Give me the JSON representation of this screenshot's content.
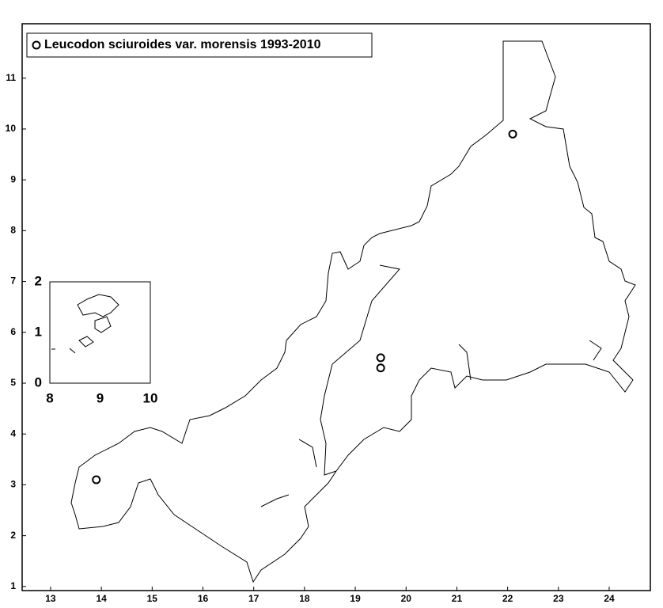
{
  "chart_data": [
    {
      "type": "scatter",
      "series": [
        {
          "name": "Leucodon sciuroides var. morensis 1993-2010",
          "color": "#000000",
          "x": [
            13.9,
            19.5,
            19.5,
            22.1
          ],
          "values": [
            3.1,
            5.5,
            5.3,
            9.9
          ]
        }
      ],
      "xlim": [
        12.44,
        24.81
      ],
      "ylim": [
        0.92,
        12.07
      ],
      "xticks": [
        13,
        14,
        15,
        16,
        17,
        18,
        19,
        20,
        21,
        22,
        23,
        24
      ],
      "yticks": [
        1,
        2,
        3,
        4,
        5,
        6,
        7,
        8,
        9,
        10,
        11
      ]
    },
    {
      "type": "inset",
      "xlim": [
        8,
        10
      ],
      "ylim": [
        0,
        2
      ],
      "xticks": [
        8,
        9,
        10
      ],
      "yticks": [
        0,
        1,
        2
      ]
    }
  ]
}
